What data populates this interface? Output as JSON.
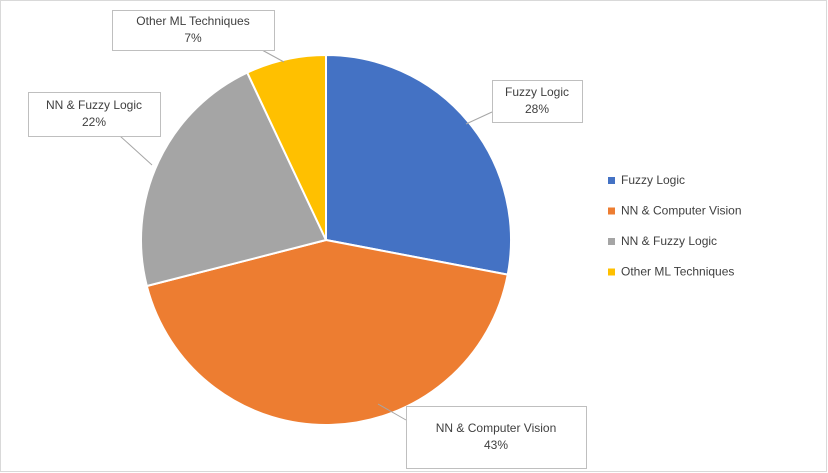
{
  "chart_data": {
    "type": "pie",
    "categories": [
      "Fuzzy Logic",
      "NN & Computer Vision",
      "NN & Fuzzy Logic",
      "Other ML Techniques"
    ],
    "values": [
      28,
      43,
      22,
      7
    ],
    "value_labels": [
      "28%",
      "43%",
      "22%",
      "7%"
    ],
    "colors": [
      "#4472c4",
      "#ed7d31",
      "#a5a5a5",
      "#ffc000"
    ],
    "legend": "right"
  }
}
